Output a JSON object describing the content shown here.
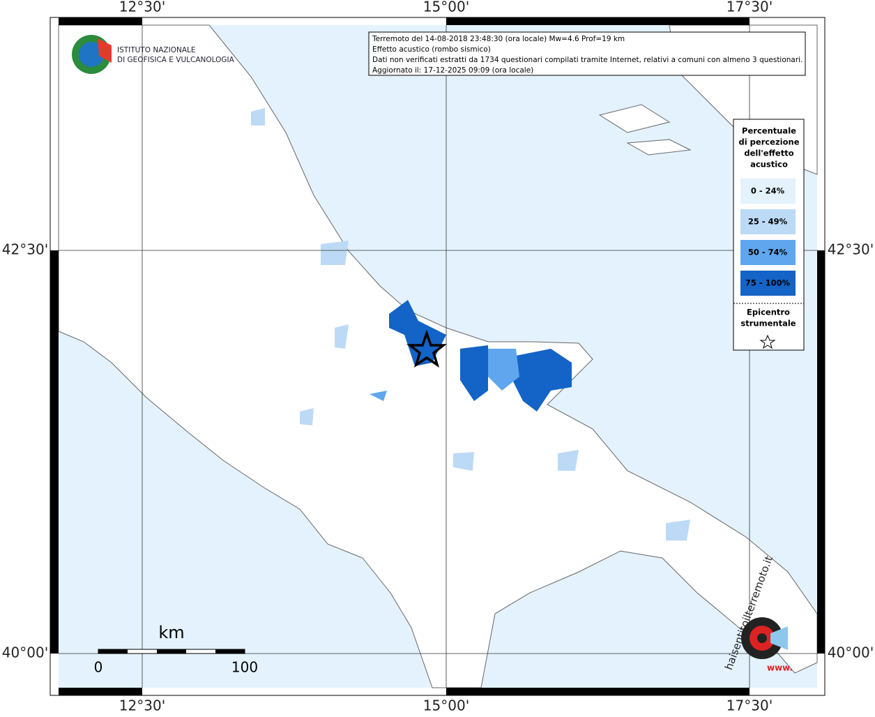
{
  "map": {
    "header_lines": [
      "Terremoto del 14-08-2018 23:48:30 (ora locale) Mw=4.6 Prof=19 km",
      "Effetto acustico (rombo sismico)",
      "Dati non verificati estratti da 1734 questionari compilati tramite Internet, relativi a comuni con almeno 3 questionari.",
      "Aggiornato il: 17-12-2025 09:09 (ora locale)"
    ],
    "lon_labels": [
      "12°30'",
      "15°00'",
      "17°30'"
    ],
    "lat_labels": [
      "42°30'",
      "40°00'"
    ],
    "logo_lines": [
      "ISTITUTO NAZIONALE",
      "DI GEOFISICA E VULCANOLOGIA"
    ],
    "legend": {
      "title_lines": [
        "Percentuale",
        "di percezione",
        "dell'effetto",
        "acustico"
      ],
      "classes": [
        {
          "label": "0 - 24%",
          "color": "#e3f2fd"
        },
        {
          "label": "25 - 49%",
          "color": "#bcdaf6"
        },
        {
          "label": "50 - 74%",
          "color": "#5fa6ee"
        },
        {
          "label": "75 - 100%",
          "color": "#1463c6"
        }
      ],
      "epicenter_lines": [
        "Epicentro",
        "strumentale"
      ]
    },
    "scale": {
      "unit": "km",
      "labels": [
        0,
        100
      ]
    },
    "watermark": {
      "site": "haisentitoilterremoto.it",
      "prefix": "www."
    }
  }
}
